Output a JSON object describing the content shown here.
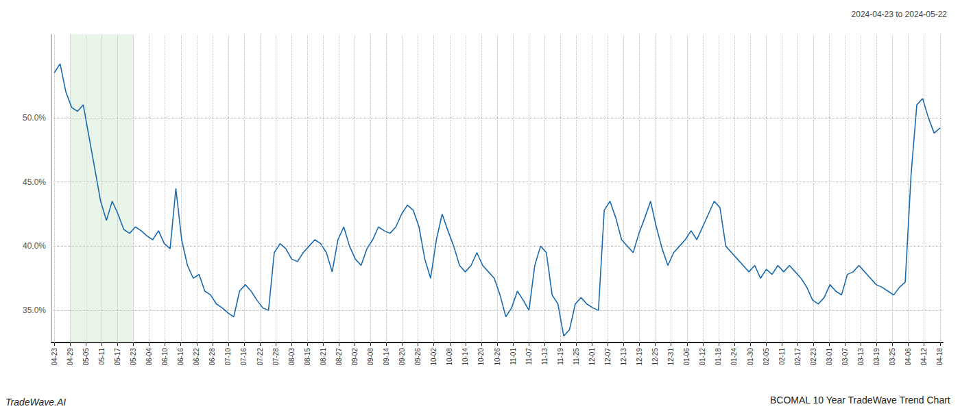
{
  "chart_data": {
    "type": "line",
    "title": "BCOMAL 10 Year TradeWave Trend Chart",
    "subtitle": "2024-04-23 to 2024-05-22",
    "annotations": [
      "TradeWave.AI"
    ],
    "color": "#1a6ab0",
    "grid": true,
    "shade": {
      "x": [
        2.732142857142857,
        13.660714285714286
      ],
      "color": "#c8e6c9"
    },
    "xlim": [
      -0.5,
      153.5
    ],
    "xticks": [
      {
        "value": 0,
        "label": "04-23"
      },
      {
        "value": 2.732142857142857,
        "label": "04-29"
      },
      {
        "value": 5.464285714285714,
        "label": "05-05"
      },
      {
        "value": 8.196428571428571,
        "label": "05-11"
      },
      {
        "value": 10.928571428571429,
        "label": "05-17"
      },
      {
        "value": 13.660714285714286,
        "label": "05-23"
      },
      {
        "value": 16.392857142857142,
        "label": "06-04"
      },
      {
        "value": 19.125,
        "label": "06-10"
      },
      {
        "value": 21.857142857142858,
        "label": "06-16"
      },
      {
        "value": 24.589285714285715,
        "label": "06-22"
      },
      {
        "value": 27.321428571428573,
        "label": "06-28"
      },
      {
        "value": 30.053571428571427,
        "label": "07-10"
      },
      {
        "value": 32.785714285714285,
        "label": "07-16"
      },
      {
        "value": 35.517857142857146,
        "label": "07-22"
      },
      {
        "value": 38.25,
        "label": "07-28"
      },
      {
        "value": 40.982142857142854,
        "label": "08-03"
      },
      {
        "value": 43.714285714285715,
        "label": "08-15"
      },
      {
        "value": 46.44642857142857,
        "label": "08-21"
      },
      {
        "value": 49.17857142857143,
        "label": "08-27"
      },
      {
        "value": 51.910714285714285,
        "label": "09-02"
      },
      {
        "value": 54.642857142857146,
        "label": "09-08"
      },
      {
        "value": 57.375,
        "label": "09-14"
      },
      {
        "value": 60.107142857142854,
        "label": "09-20"
      },
      {
        "value": 62.839285714285715,
        "label": "09-26"
      },
      {
        "value": 65.57142857142857,
        "label": "10-02"
      },
      {
        "value": 68.30357142857143,
        "label": "10-08"
      },
      {
        "value": 71.03571428571429,
        "label": "10-14"
      },
      {
        "value": 73.76785714285714,
        "label": "10-20"
      },
      {
        "value": 76.5,
        "label": "10-26"
      },
      {
        "value": 79.23214285714286,
        "label": "11-01"
      },
      {
        "value": 81.96428571428571,
        "label": "11-07"
      },
      {
        "value": 84.69642857142857,
        "label": "11-13"
      },
      {
        "value": 87.42857142857143,
        "label": "11-19"
      },
      {
        "value": 90.16071428571429,
        "label": "11-25"
      },
      {
        "value": 92.89285714285714,
        "label": "12-01"
      },
      {
        "value": 95.625,
        "label": "12-07"
      },
      {
        "value": 98.35714285714286,
        "label": "12-13"
      },
      {
        "value": 101.08928571428571,
        "label": "12-19"
      },
      {
        "value": 103.82142857142857,
        "label": "12-25"
      },
      {
        "value": 106.55357142857143,
        "label": "12-31"
      },
      {
        "value": 109.28571428571429,
        "label": "01-06"
      },
      {
        "value": 112.01785714285714,
        "label": "01-12"
      },
      {
        "value": 114.75,
        "label": "01-18"
      },
      {
        "value": 117.48214285714286,
        "label": "01-24"
      },
      {
        "value": 120.21428571428571,
        "label": "01-30"
      },
      {
        "value": 122.94642857142857,
        "label": "02-05"
      },
      {
        "value": 125.67857142857143,
        "label": "02-11"
      },
      {
        "value": 128.41071428571428,
        "label": "02-17"
      },
      {
        "value": 131.14285714285714,
        "label": "02-23"
      },
      {
        "value": 133.875,
        "label": "03-01"
      },
      {
        "value": 136.60714285714286,
        "label": "03-07"
      },
      {
        "value": 139.33928571428572,
        "label": "03-13"
      },
      {
        "value": 142.07142857142858,
        "label": "03-19"
      },
      {
        "value": 144.80357142857142,
        "label": "03-25"
      },
      {
        "value": 147.53571428571428,
        "label": "04-06"
      },
      {
        "value": 150.26785714285714,
        "label": "04-12"
      },
      {
        "value": 153,
        "label": "04-18"
      }
    ],
    "ylim": [
      32.5,
      56.5
    ],
    "yticks": [
      {
        "value": 35.0,
        "label": "35.0%"
      },
      {
        "value": 40.0,
        "label": "40.0%"
      },
      {
        "value": 45.0,
        "label": "45.0%"
      },
      {
        "value": 50.0,
        "label": "50.0%"
      }
    ],
    "x": [
      0,
      1,
      2,
      3,
      4,
      5,
      6,
      7,
      8,
      9,
      10,
      11,
      12,
      13,
      14,
      15,
      16,
      17,
      18,
      19,
      20,
      21,
      22,
      23,
      24,
      25,
      26,
      27,
      28,
      29,
      30,
      31,
      32,
      33,
      34,
      35,
      36,
      37,
      38,
      39,
      40,
      41,
      42,
      43,
      44,
      45,
      46,
      47,
      48,
      49,
      50,
      51,
      52,
      53,
      54,
      55,
      56,
      57,
      58,
      59,
      60,
      61,
      62,
      63,
      64,
      65,
      66,
      67,
      68,
      69,
      70,
      71,
      72,
      73,
      74,
      75,
      76,
      77,
      78,
      79,
      80,
      81,
      82,
      83,
      84,
      85,
      86,
      87,
      88,
      89,
      90,
      91,
      92,
      93,
      94,
      95,
      96,
      97,
      98,
      99,
      100,
      101,
      102,
      103,
      104,
      105,
      106,
      107,
      108,
      109,
      110,
      111,
      112,
      113,
      114,
      115,
      116,
      117,
      118,
      119,
      120,
      121,
      122,
      123,
      124,
      125,
      126,
      127,
      128,
      129,
      130,
      131,
      132,
      133,
      134,
      135,
      136,
      137,
      138,
      139,
      140,
      141,
      142,
      143,
      144,
      145,
      146,
      147,
      148,
      149,
      150,
      151,
      152,
      153
    ],
    "values": [
      53.5,
      54.2,
      52.0,
      50.8,
      50.5,
      51.0,
      48.5,
      46.0,
      43.5,
      42.0,
      43.5,
      42.5,
      41.3,
      41.0,
      41.5,
      41.2,
      40.8,
      40.5,
      41.2,
      40.2,
      39.8,
      44.5,
      40.5,
      38.5,
      37.5,
      37.8,
      36.5,
      36.2,
      35.5,
      35.2,
      34.8,
      34.5,
      36.5,
      37.0,
      36.5,
      35.8,
      35.2,
      35.0,
      39.5,
      40.2,
      39.8,
      39.0,
      38.8,
      39.5,
      40.0,
      40.5,
      40.2,
      39.5,
      38.0,
      40.5,
      41.5,
      40.0,
      39.0,
      38.5,
      39.8,
      40.5,
      41.5,
      41.2,
      41.0,
      41.5,
      42.5,
      43.2,
      42.8,
      41.5,
      39.0,
      37.5,
      40.5,
      42.5,
      41.2,
      40.0,
      38.5,
      38.0,
      38.5,
      39.5,
      38.5,
      38.0,
      37.5,
      36.2,
      34.5,
      35.2,
      36.5,
      35.8,
      35.0,
      38.5,
      40.0,
      39.5,
      36.2,
      35.5,
      33.0,
      33.5,
      35.5,
      36.0,
      35.5,
      35.2,
      35.0,
      42.8,
      43.5,
      42.2,
      40.5,
      40.0,
      39.5,
      41.0,
      42.2,
      43.5,
      41.5,
      39.8,
      38.5,
      39.5,
      40.0,
      40.5,
      41.2,
      40.5,
      41.5,
      42.5,
      43.5,
      43.0,
      40.0,
      39.5,
      39.0,
      38.5,
      38.0,
      38.5,
      37.5,
      38.2,
      37.8,
      38.5,
      38.0,
      38.5,
      38.0,
      37.5,
      36.8,
      35.8,
      35.5,
      36.0,
      37.0,
      36.5,
      36.2,
      37.8,
      38.0,
      38.5,
      38.0,
      37.5,
      37.0,
      36.8,
      36.5,
      36.2,
      36.8,
      37.2,
      45.5,
      51.0,
      51.5,
      50.0,
      48.8,
      49.2
    ]
  }
}
